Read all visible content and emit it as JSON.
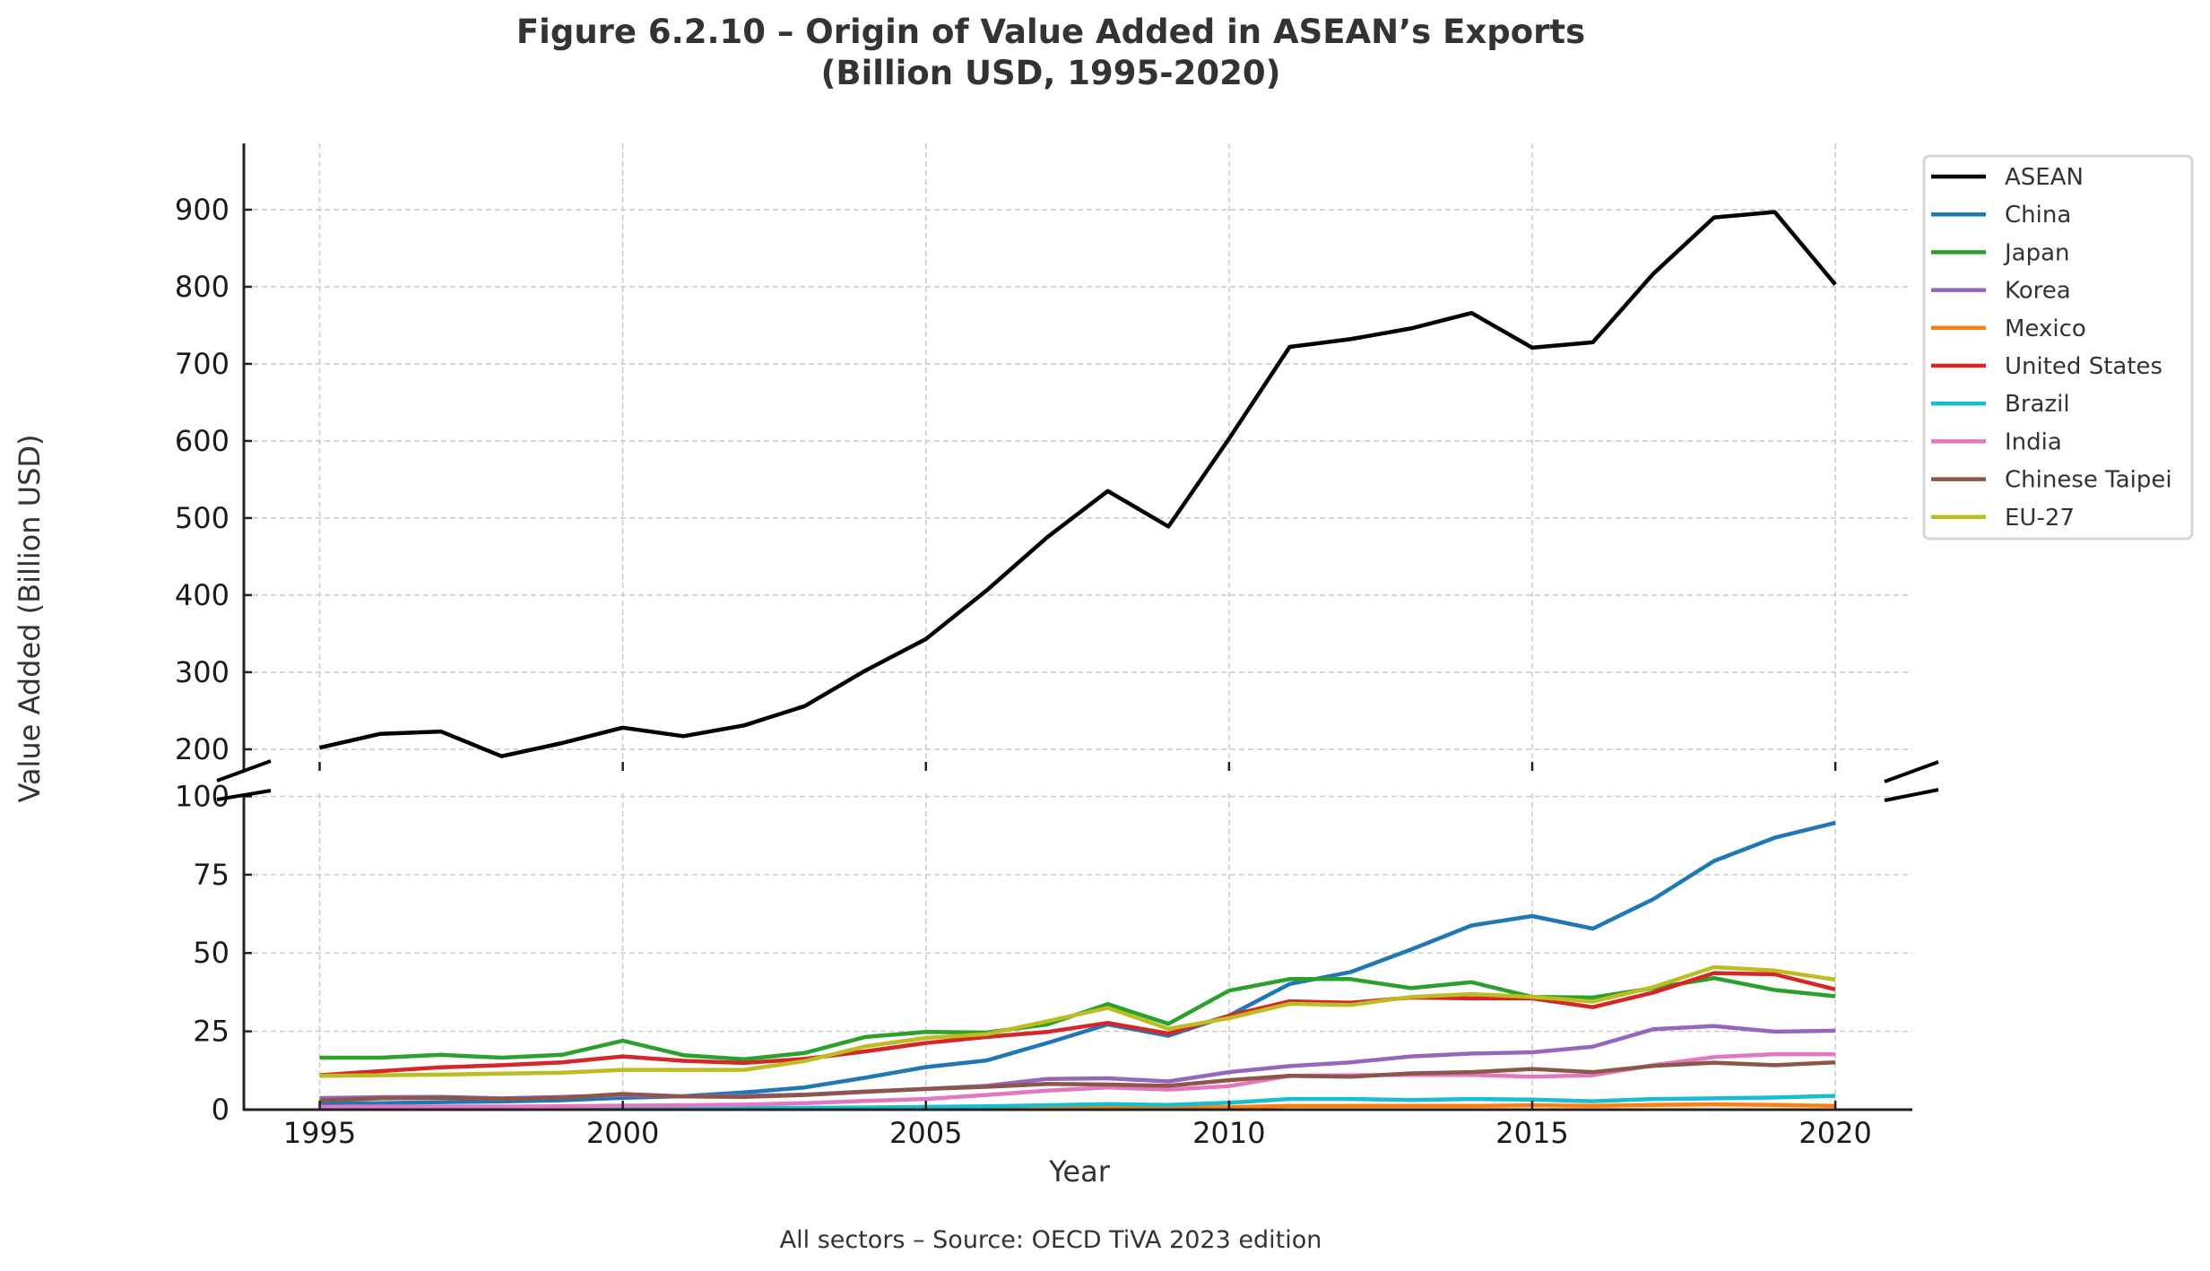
{
  "chart_data": {
    "type": "line",
    "title": "Figure 6.2.10 – Origin of Value Added in ASEAN’s Exports",
    "subtitle": "(Billion USD, 1995-2020)",
    "xlabel": "Year",
    "ylabel": "Value Added (Billion USD)",
    "caption": "All sectors – Source: OECD TiVA 2023 edition",
    "broken_y_axis": true,
    "x": [
      1995,
      1996,
      1997,
      1998,
      1999,
      2000,
      2001,
      2002,
      2003,
      2004,
      2005,
      2006,
      2007,
      2008,
      2009,
      2010,
      2011,
      2012,
      2013,
      2014,
      2015,
      2016,
      2017,
      2018,
      2019,
      2020
    ],
    "xlim": [
      1993.75,
      2021.27
    ],
    "x_ticks": [
      1995,
      2000,
      2005,
      2010,
      2015,
      2020
    ],
    "x_tick_labels": [
      "1995",
      "2000",
      "2005",
      "2010",
      "2015",
      "2020"
    ],
    "panels": [
      {
        "name": "upper",
        "ylim": [
          172,
          986
        ],
        "y_ticks": [
          200,
          300,
          400,
          500,
          600,
          700,
          800,
          900
        ],
        "y_tick_labels": [
          "200",
          "300",
          "400",
          "500",
          "600",
          "700",
          "800",
          "900"
        ]
      },
      {
        "name": "lower",
        "ylim": [
          0,
          101
        ],
        "y_ticks": [
          0,
          25,
          50,
          75,
          100
        ],
        "y_tick_labels": [
          "0",
          "25",
          "50",
          "75",
          "100"
        ]
      }
    ],
    "grid": true,
    "legend_position": "upper-right-outside",
    "series": [
      {
        "name": "ASEAN",
        "color": "#000000",
        "panel": "upper",
        "values": [
          202,
          220,
          223,
          191,
          208,
          228,
          217,
          231,
          256,
          302,
          343,
          406,
          475,
          535,
          489,
          603,
          722,
          732,
          746,
          766,
          721,
          728,
          817,
          890,
          897,
          803
        ]
      },
      {
        "name": "China",
        "color": "#1f77b4",
        "panel": "lower",
        "values": [
          1.9,
          2.1,
          2.4,
          2.6,
          3.0,
          3.8,
          4.3,
          5.5,
          7.1,
          10.2,
          13.6,
          15.7,
          21.3,
          27.2,
          23.6,
          30.0,
          40.1,
          43.9,
          51.1,
          58.8,
          61.8,
          57.8,
          67.2,
          79.4,
          86.8,
          91.6
        ]
      },
      {
        "name": "Japan",
        "color": "#2ca02c",
        "panel": "lower",
        "values": [
          16.6,
          16.6,
          17.5,
          16.6,
          17.5,
          22.0,
          17.4,
          16.1,
          18.1,
          23.2,
          24.8,
          24.6,
          27.2,
          33.7,
          27.4,
          38.0,
          41.7,
          41.7,
          38.8,
          40.7,
          36.0,
          35.8,
          38.8,
          42.0,
          38.2,
          36.2
        ]
      },
      {
        "name": "Korea",
        "color": "#9467bd",
        "panel": "lower",
        "values": [
          3.7,
          4.0,
          4.1,
          3.6,
          4.1,
          4.6,
          4.2,
          4.4,
          4.8,
          5.8,
          6.6,
          7.6,
          9.8,
          10.0,
          9.0,
          12.0,
          13.9,
          15.1,
          17.0,
          17.9,
          18.3,
          20.1,
          25.7,
          26.7,
          24.9,
          25.2
        ]
      },
      {
        "name": "Mexico",
        "color": "#ff7f0e",
        "panel": "lower",
        "values": [
          0.2,
          0.2,
          0.2,
          0.2,
          0.2,
          0.3,
          0.3,
          0.3,
          0.3,
          0.4,
          0.5,
          0.5,
          0.6,
          0.7,
          0.6,
          0.8,
          1.2,
          1.2,
          1.2,
          1.2,
          1.4,
          1.2,
          1.5,
          1.7,
          1.5,
          1.2
        ]
      },
      {
        "name": "United States",
        "color": "#d62728",
        "panel": "lower",
        "values": [
          11.0,
          12.3,
          13.5,
          14.2,
          15.1,
          17.0,
          15.6,
          14.9,
          16.2,
          18.6,
          21.3,
          23.2,
          24.8,
          27.7,
          24.3,
          30.0,
          34.6,
          34.1,
          35.8,
          35.5,
          35.5,
          32.7,
          37.4,
          43.6,
          43.2,
          38.4
        ]
      },
      {
        "name": "Brazil",
        "color": "#17becf",
        "panel": "lower",
        "values": [
          0.4,
          0.4,
          0.4,
          0.4,
          0.4,
          0.5,
          0.5,
          0.5,
          0.6,
          0.7,
          0.9,
          1.1,
          1.4,
          1.8,
          1.5,
          2.2,
          3.4,
          3.4,
          3.1,
          3.4,
          3.2,
          2.7,
          3.4,
          3.6,
          3.9,
          4.4
        ]
      },
      {
        "name": "India",
        "color": "#e377c2",
        "panel": "lower",
        "values": [
          0.9,
          1.0,
          1.0,
          1.0,
          1.1,
          1.3,
          1.4,
          1.6,
          2.1,
          2.8,
          3.4,
          4.7,
          6.1,
          7.1,
          6.4,
          7.5,
          10.8,
          11.0,
          11.1,
          11.1,
          10.5,
          11.0,
          14.2,
          16.8,
          17.7,
          17.7
        ]
      },
      {
        "name": "Chinese Taipei",
        "color": "#8c564b",
        "panel": "lower",
        "values": [
          2.9,
          3.6,
          3.8,
          3.4,
          3.8,
          5.0,
          4.2,
          4.1,
          4.7,
          5.7,
          6.6,
          7.3,
          8.2,
          8.0,
          7.6,
          9.4,
          10.8,
          10.5,
          11.6,
          12.0,
          13.0,
          12.0,
          14.0,
          15.0,
          14.2,
          15.1
        ]
      },
      {
        "name": "EU-27",
        "color": "#bcbd22",
        "panel": "lower",
        "values": [
          10.8,
          11.0,
          11.2,
          11.5,
          11.8,
          12.7,
          12.7,
          12.7,
          15.5,
          20.2,
          22.9,
          24.1,
          28.2,
          32.5,
          25.8,
          29.2,
          33.8,
          33.4,
          36.0,
          36.9,
          36.0,
          34.5,
          39.1,
          45.5,
          44.4,
          41.5
        ]
      }
    ]
  }
}
